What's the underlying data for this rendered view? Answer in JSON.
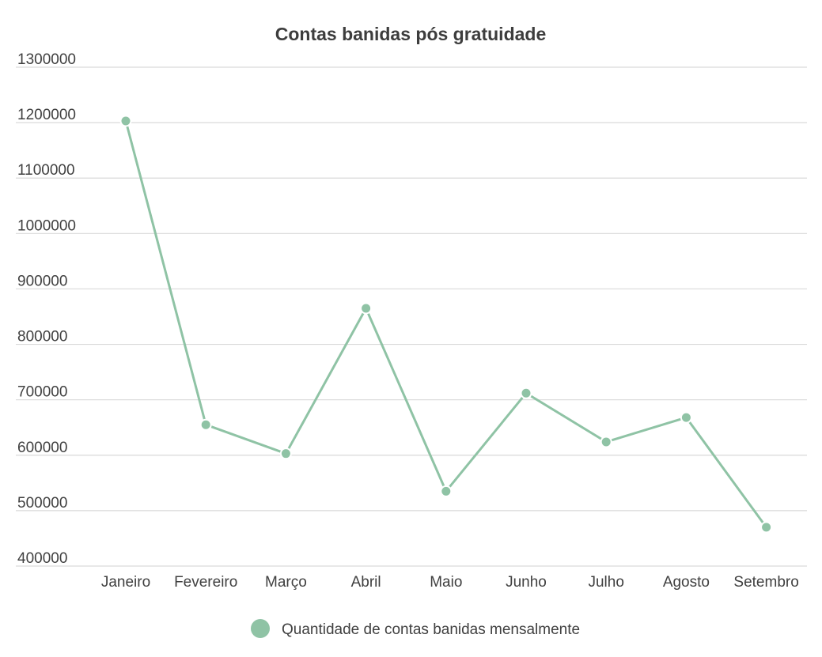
{
  "chart_data": {
    "type": "line",
    "title": "Contas banidas pós gratuidade",
    "xlabel": "",
    "ylabel": "",
    "categories": [
      "Janeiro",
      "Fevereiro",
      "Março",
      "Abril",
      "Maio",
      "Junho",
      "Julho",
      "Agosto",
      "Setembro"
    ],
    "ylim": [
      400000,
      1300000
    ],
    "yticks": [
      400000,
      500000,
      600000,
      700000,
      800000,
      900000,
      1000000,
      1100000,
      1200000,
      1300000
    ],
    "series": [
      {
        "name": "Quantidade de contas banidas mensalmente",
        "color": "#8fc3a5",
        "values": [
          1203000,
          655000,
          603000,
          865000,
          535000,
          712000,
          624000,
          668000,
          470000
        ]
      }
    ],
    "grid": true,
    "legend_position": "bottom-center"
  }
}
